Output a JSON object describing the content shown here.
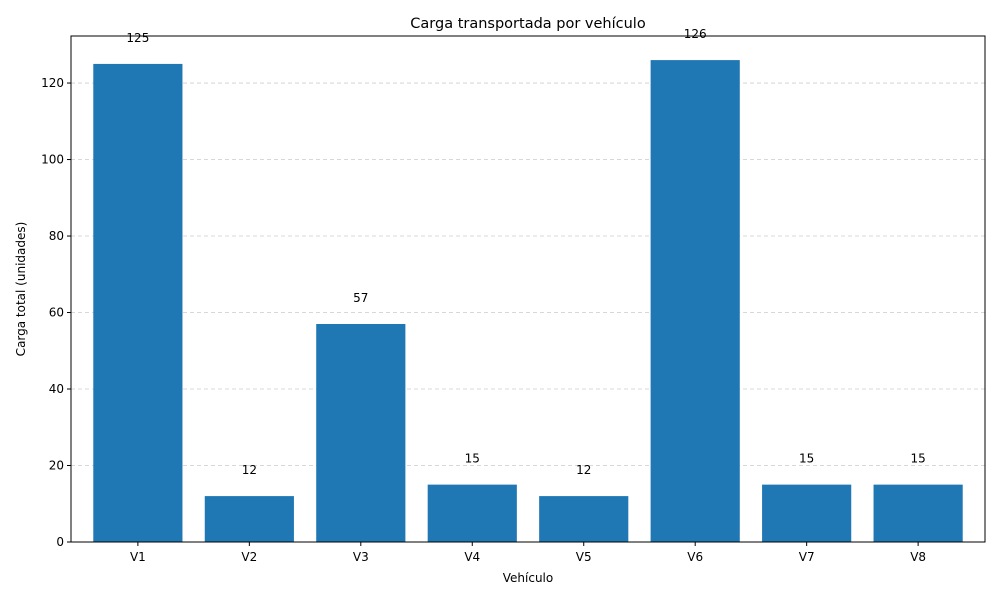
{
  "chart_data": {
    "type": "bar",
    "title": "Carga transportada por vehículo",
    "xlabel": "Vehículo",
    "ylabel": "Carga total (unidades)",
    "categories": [
      "V1",
      "V2",
      "V3",
      "V4",
      "V5",
      "V6",
      "V7",
      "V8"
    ],
    "values": [
      125,
      12,
      57,
      15,
      12,
      126,
      15,
      15
    ],
    "ylim": [
      0,
      132.3
    ],
    "yticks": [
      0,
      20,
      40,
      60,
      80,
      100,
      120
    ],
    "grid": {
      "y": true,
      "style": "dashed",
      "color": "#cccccc"
    },
    "bar_color": "#1f77b4",
    "show_data_labels": true
  }
}
